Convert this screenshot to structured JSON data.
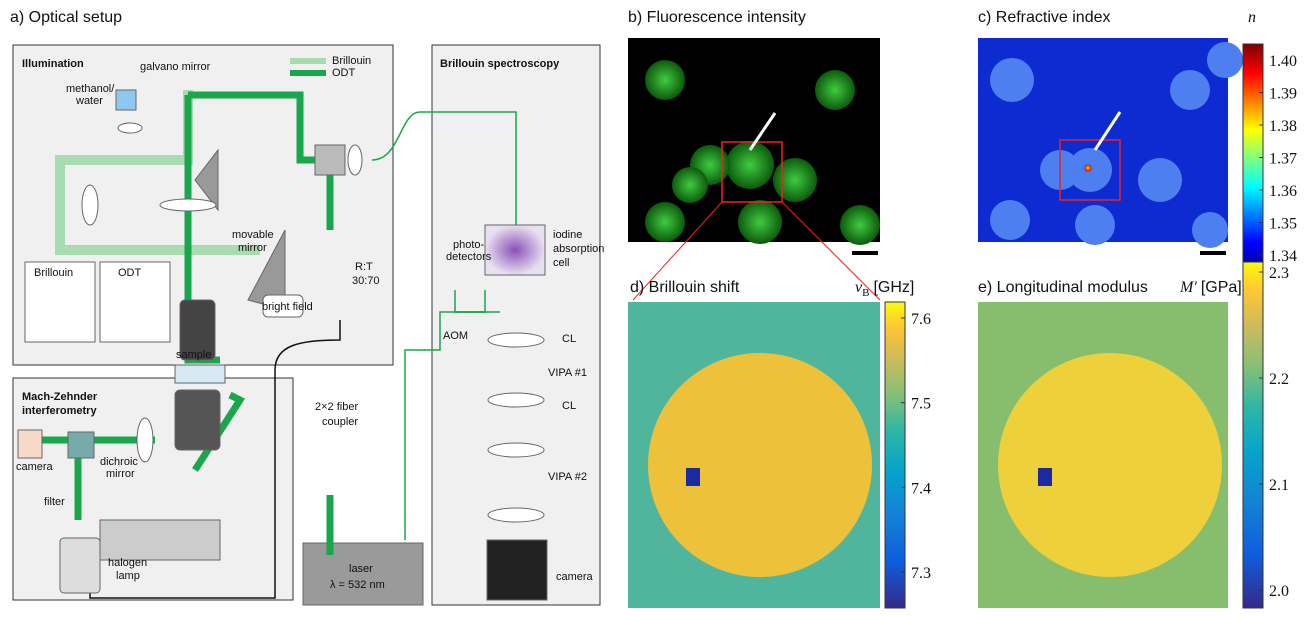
{
  "panel_a": {
    "title": "a) Optical setup",
    "illumination": {
      "title": "Illumination",
      "galvano": "galvano mirror",
      "legend": [
        "Brillouin",
        "ODT"
      ],
      "methanol": [
        "methanol/",
        "water"
      ],
      "movable": [
        "movable",
        "mirror"
      ],
      "rt": [
        "R:T",
        "30:70"
      ],
      "insets": [
        "Brillouin",
        "ODT"
      ],
      "bright_field": "bright field",
      "sample": "sample"
    },
    "mach_zehnder": {
      "title": [
        "Mach-Zehnder",
        "interferometry"
      ],
      "dichroic": [
        "dichroic",
        "mirror"
      ],
      "camera": "camera",
      "filter": "filter",
      "halogen": [
        "halogen",
        "lamp"
      ]
    },
    "coupler": [
      "2×2 fiber",
      "coupler"
    ],
    "laser": [
      "laser",
      "λ = 532 nm"
    ],
    "brillouin": {
      "title": "Brillouin spectroscopy",
      "photo": [
        "photo-",
        "detectors"
      ],
      "iodine": [
        "iodine",
        "absorption",
        "cell"
      ],
      "aom": "AOM",
      "cl1": "CL",
      "vipa1": "VIPA #1",
      "cl2": "CL",
      "vipa2": "VIPA #2",
      "camera": "camera"
    }
  },
  "panel_b": {
    "title": "b) Fluorescence intensity"
  },
  "panel_c": {
    "title": "c) Refractive index",
    "unit": "n",
    "ticks": [
      "1.40",
      "1.39",
      "1.38",
      "1.37",
      "1.36",
      "1.35",
      "1.34"
    ]
  },
  "panel_d": {
    "title": "d) Brillouin shift",
    "symbol": "ν",
    "subscript": "B",
    "unit": "[GHz]",
    "ticks": [
      "7.6",
      "7.5",
      "7.4",
      "7.3"
    ]
  },
  "panel_e": {
    "title": "e) Longitudinal modulus",
    "symbol": "M′",
    "unit": "[GPa]",
    "ticks": [
      "2.3",
      "2.2",
      "2.1",
      "2.0"
    ]
  }
}
